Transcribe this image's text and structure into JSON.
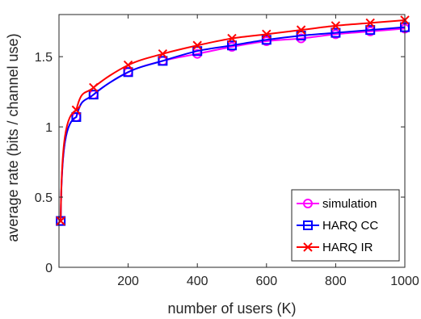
{
  "chart_data": {
    "type": "line",
    "xlabel": "number of users (K)",
    "ylabel": "average rate (bits / channel use)",
    "xlim": [
      0,
      1000
    ],
    "ylim": [
      0,
      1.8
    ],
    "xticks": [
      200,
      400,
      600,
      800,
      1000
    ],
    "xtick_labels": [
      "200",
      "400",
      "600",
      "800",
      "1000"
    ],
    "yticks": [
      0,
      0.5,
      1,
      1.5
    ],
    "ytick_labels": [
      "0",
      "0.5",
      "1",
      "1.5"
    ],
    "grid": false,
    "legend_position": "bottom-right",
    "series": [
      {
        "name": "simulation",
        "color": "#ff00ff",
        "marker": "circle",
        "x": [
          5,
          50,
          100,
          200,
          300,
          400,
          500,
          600,
          700,
          800,
          900,
          1000
        ],
        "y": [
          0.33,
          1.07,
          1.23,
          1.39,
          1.47,
          1.52,
          1.57,
          1.61,
          1.63,
          1.66,
          1.68,
          1.7
        ]
      },
      {
        "name": "HARQ CC",
        "color": "#0000ff",
        "marker": "square",
        "x": [
          5,
          50,
          100,
          200,
          300,
          400,
          500,
          600,
          700,
          800,
          900,
          1000
        ],
        "y": [
          0.33,
          1.07,
          1.23,
          1.39,
          1.47,
          1.54,
          1.58,
          1.62,
          1.65,
          1.67,
          1.69,
          1.71
        ]
      },
      {
        "name": "HARQ IR",
        "color": "#ff0000",
        "marker": "x",
        "x": [
          5,
          50,
          100,
          200,
          300,
          400,
          500,
          600,
          700,
          800,
          900,
          1000
        ],
        "y": [
          0.33,
          1.12,
          1.28,
          1.44,
          1.52,
          1.58,
          1.63,
          1.66,
          1.69,
          1.72,
          1.74,
          1.76
        ]
      }
    ]
  }
}
